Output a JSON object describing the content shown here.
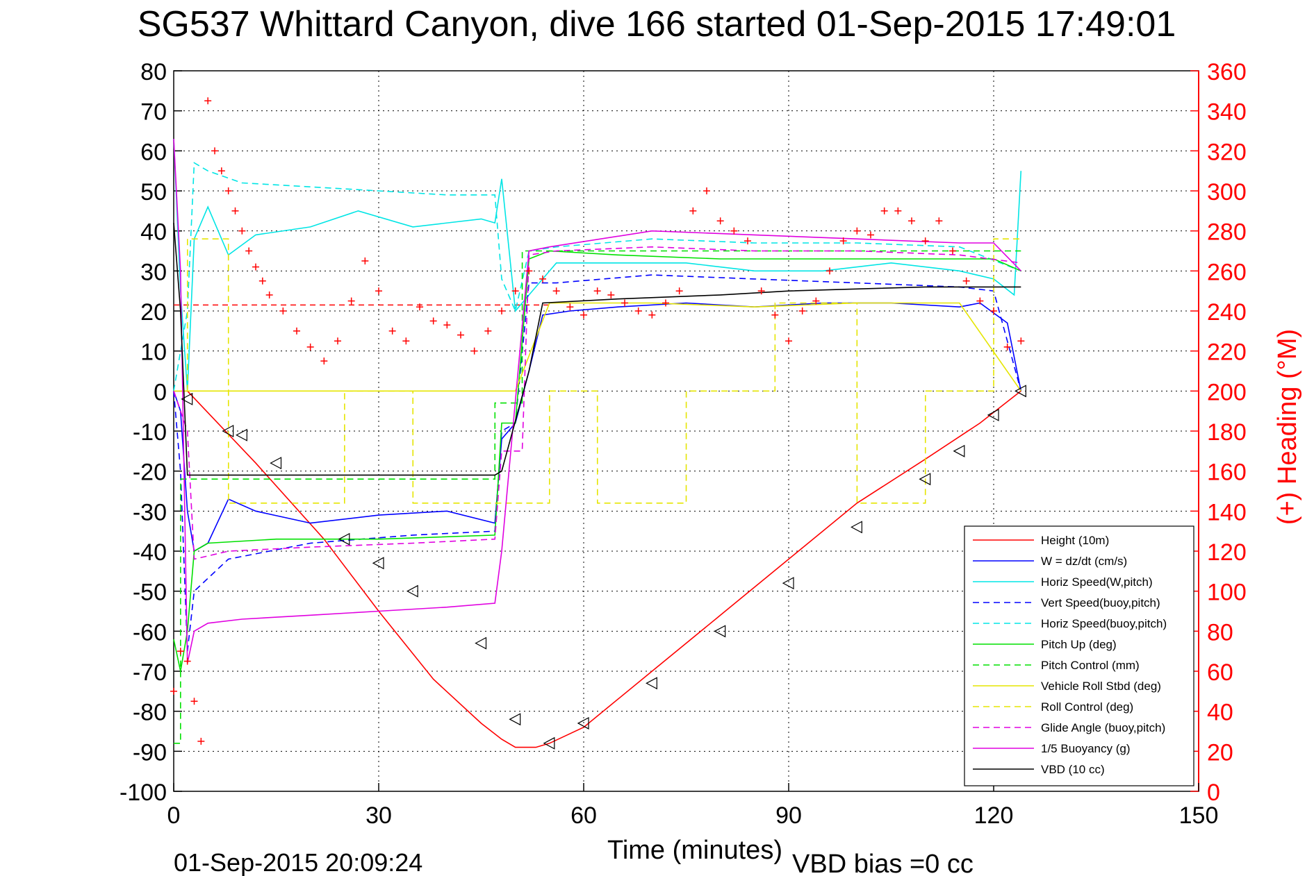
{
  "chart_data": {
    "type": "line",
    "title": "SG537 Whittard Canyon, dive 166 started 01-Sep-2015 17:49:01",
    "xlabel": "Time (minutes)",
    "ylabel": "",
    "y2label": "(+) Heading (°M)",
    "bottom_left_note": "01-Sep-2015 20:09:24",
    "bottom_note": "VBD bias =0 cc",
    "xlim": [
      0,
      150
    ],
    "ylim": [
      -100,
      80
    ],
    "y2lim": [
      0,
      360
    ],
    "xticks": [
      0,
      30,
      60,
      90,
      120,
      150
    ],
    "yticks": [
      80,
      70,
      60,
      50,
      40,
      30,
      20,
      10,
      0,
      -10,
      -20,
      -30,
      -40,
      -50,
      -60,
      -70,
      -80,
      -90,
      -100
    ],
    "y2ticks": [
      360,
      340,
      320,
      300,
      280,
      260,
      240,
      220,
      200,
      180,
      160,
      140,
      120,
      100,
      80,
      60,
      40,
      20,
      0
    ],
    "grid": true,
    "legend_position": "bottom-right",
    "axis_colors": {
      "left": "#000000",
      "right": "#ff0000"
    },
    "series": [
      {
        "name": "Height (10m)",
        "color": "#ff0000",
        "style": "solid",
        "x": [
          0,
          2,
          12,
          22,
          30,
          38,
          45,
          48,
          50,
          53,
          55,
          60,
          70,
          80,
          90,
          100,
          110,
          118,
          124
        ],
        "y": [
          0,
          0,
          -18,
          -37,
          -55,
          -72,
          -83,
          -87,
          -89,
          -89,
          -88,
          -84,
          -70,
          -56,
          -42,
          -28,
          -17,
          -8,
          0
        ]
      },
      {
        "name": "W = dz/dt (cm/s)",
        "color": "#0000ff",
        "style": "solid",
        "x": [
          0,
          1,
          2,
          3,
          5,
          8,
          12,
          20,
          30,
          40,
          47,
          48,
          50,
          52,
          54,
          58,
          65,
          75,
          85,
          95,
          105,
          115,
          118,
          122,
          124
        ],
        "y": [
          0,
          -5,
          -30,
          -40,
          -38,
          -27,
          -30,
          -33,
          -31,
          -30,
          -33,
          -12,
          -8,
          5,
          19,
          20,
          21,
          22,
          21,
          22,
          22,
          21,
          22,
          17,
          0
        ]
      },
      {
        "name": "Horiz Speed(W,pitch)",
        "color": "#00e5e5",
        "style": "solid",
        "x": [
          0,
          1,
          2,
          3,
          5,
          8,
          12,
          20,
          27,
          35,
          45,
          47,
          48,
          50,
          52,
          56,
          65,
          75,
          85,
          95,
          105,
          115,
          120,
          123,
          124
        ],
        "y": [
          63,
          25,
          0,
          38,
          46,
          34,
          39,
          41,
          45,
          41,
          43,
          42,
          53,
          20,
          24,
          32,
          32,
          32,
          30,
          30,
          32,
          30,
          28,
          24,
          55
        ]
      },
      {
        "name": "Vert Speed(buoy,pitch)",
        "color": "#0000ff",
        "style": "dashed",
        "x": [
          0,
          1,
          2,
          3,
          8,
          20,
          35,
          47,
          48,
          50,
          52,
          56,
          70,
          85,
          100,
          115,
          120,
          124
        ],
        "y": [
          0,
          -20,
          -65,
          -50,
          -42,
          -38,
          -36,
          -35,
          -10,
          -8,
          27,
          27,
          29,
          28,
          27,
          26,
          25,
          0
        ]
      },
      {
        "name": "Horiz Speed(buoy,pitch)",
        "color": "#00e5e5",
        "style": "dashed",
        "x": [
          0,
          2,
          3,
          5,
          10,
          20,
          30,
          40,
          47,
          48,
          50,
          52,
          56,
          70,
          85,
          100,
          115,
          124
        ],
        "y": [
          0,
          20,
          57,
          55,
          52,
          51,
          50,
          49,
          49,
          28,
          20,
          35,
          36,
          38,
          37,
          37,
          36,
          30
        ]
      },
      {
        "name": "Pitch Up (deg)",
        "color": "#00e000",
        "style": "solid",
        "x": [
          0,
          1,
          2,
          3,
          5,
          15,
          30,
          47,
          48,
          50,
          52,
          55,
          65,
          80,
          95,
          110,
          120,
          124
        ],
        "y": [
          -62,
          -70,
          -60,
          -40,
          -38,
          -37,
          -37,
          -36,
          -8,
          -8,
          33,
          35,
          34,
          33,
          33,
          33,
          33,
          30
        ]
      },
      {
        "name": "Pitch Control (mm)",
        "color": "#00e000",
        "style": "dashed",
        "x": [
          0,
          1,
          1.01,
          2,
          2.01,
          47,
          47.01,
          51,
          51.01,
          124
        ],
        "y": [
          -88,
          -88,
          -22,
          -22,
          -22,
          -22,
          -3,
          -3,
          35,
          35
        ]
      },
      {
        "name": "Vehicle Roll Stbd (deg)",
        "color": "#e5e500",
        "style": "solid",
        "x": [
          0,
          2,
          10,
          20,
          30,
          40,
          47,
          50,
          55,
          70,
          85,
          100,
          115,
          124
        ],
        "y": [
          0,
          0,
          0,
          0,
          0,
          0,
          0,
          0,
          22,
          22,
          21,
          22,
          22,
          0
        ]
      },
      {
        "name": "Roll Control (deg)",
        "color": "#e5e500",
        "style": "dashed",
        "x": [
          2,
          2.01,
          8,
          8.01,
          25,
          25.01,
          35,
          35.01,
          55,
          55.01,
          62,
          62.01,
          75,
          75.01,
          88,
          88.01,
          100,
          100.01,
          110,
          110.01,
          120,
          120.01,
          124
        ],
        "y": [
          0,
          38,
          38,
          -28,
          -28,
          0,
          0,
          -28,
          -28,
          0,
          0,
          -28,
          -28,
          0,
          0,
          22,
          22,
          -28,
          -28,
          0,
          0,
          38,
          38
        ]
      },
      {
        "name": "Glide Angle (buoy,pitch)",
        "color": "#e000e0",
        "style": "dashed",
        "x": [
          0,
          2,
          3,
          8,
          20,
          35,
          47,
          48,
          51,
          52,
          56,
          70,
          85,
          100,
          115,
          124
        ],
        "y": [
          0,
          -10,
          -42,
          -40,
          -39,
          -38,
          -37,
          -15,
          -15,
          34,
          35,
          36,
          35,
          35,
          34,
          32
        ]
      },
      {
        "name": "1/5 Buoyancy (g)",
        "color": "#e000e0",
        "style": "solid",
        "x": [
          0,
          1,
          2,
          3,
          5,
          10,
          20,
          30,
          40,
          47,
          48,
          52,
          55,
          70,
          85,
          100,
          115,
          120,
          124
        ],
        "y": [
          63,
          30,
          -68,
          -60,
          -58,
          -57,
          -56,
          -55,
          -54,
          -53,
          -40,
          35,
          36,
          40,
          39,
          38,
          37,
          37,
          30
        ]
      },
      {
        "name": "VBD (10 cc)",
        "color": "#000000",
        "style": "solid",
        "x": [
          0,
          1,
          2,
          10,
          30,
          47,
          48,
          52,
          54,
          65,
          80,
          90,
          110,
          124
        ],
        "y": [
          42,
          20,
          -21,
          -21,
          -21,
          -21,
          -20,
          5,
          22,
          23,
          24,
          25,
          26,
          26
        ]
      }
    ],
    "heading_series": {
      "name": "Heading",
      "axis": "right",
      "color": "#ff0000",
      "marker": "+",
      "x": [
        0,
        1,
        2,
        3,
        4,
        5,
        6,
        7,
        8,
        9,
        10,
        11,
        12,
        13,
        14,
        16,
        18,
        20,
        22,
        24,
        26,
        28,
        30,
        32,
        34,
        36,
        38,
        40,
        42,
        44,
        46,
        48,
        50,
        52,
        54,
        56,
        58,
        60,
        62,
        64,
        66,
        68,
        70,
        72,
        74,
        76,
        78,
        80,
        82,
        84,
        86,
        88,
        90,
        92,
        94,
        96,
        98,
        100,
        102,
        104,
        106,
        108,
        110,
        112,
        114,
        116,
        118,
        120,
        122,
        124
      ],
      "y": [
        50,
        70,
        65,
        45,
        25,
        345,
        320,
        310,
        300,
        290,
        280,
        270,
        262,
        255,
        248,
        240,
        230,
        222,
        215,
        225,
        245,
        265,
        250,
        230,
        225,
        242,
        235,
        233,
        228,
        220,
        230,
        240,
        250,
        260,
        256,
        250,
        242,
        238,
        250,
        248,
        244,
        240,
        238,
        244,
        250,
        290,
        300,
        285,
        280,
        275,
        250,
        238,
        225,
        240,
        245,
        260,
        275,
        280,
        278,
        290,
        290,
        285,
        275,
        285,
        270,
        255,
        245,
        240,
        222,
        225
      ]
    },
    "vbd_bias_line": {
      "name": "",
      "color": "#ff0000",
      "style": "dashed",
      "y": 21.5
    },
    "triangle_markers": {
      "x": [
        2,
        8,
        10,
        15,
        25,
        30,
        35,
        45,
        50,
        55,
        60,
        70,
        80,
        90,
        100,
        110,
        115,
        120,
        124
      ],
      "y": [
        -2,
        -10,
        -11,
        -18,
        -37,
        -43,
        -50,
        -63,
        -82,
        -88,
        -83,
        -73,
        -60,
        -48,
        -34,
        -22,
        -15,
        -6,
        0
      ]
    }
  }
}
